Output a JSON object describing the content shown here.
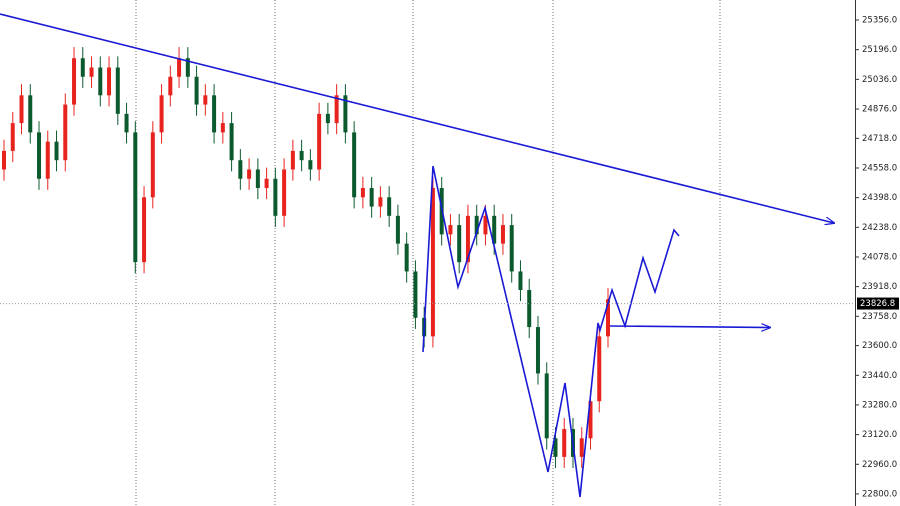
{
  "chart_data": {
    "type": "candlestick",
    "up_color": "#e8231e",
    "down_color": "#0b5a2e",
    "open": [
      24550,
      24650,
      24800,
      24950,
      24750,
      24500,
      24700,
      24600,
      24900,
      25150,
      25050,
      25100,
      24950,
      25100,
      24850,
      24750,
      24050,
      24400,
      24750,
      24950,
      25050,
      25150,
      25050,
      24900,
      24950,
      24750,
      24800,
      24600,
      24500,
      24550,
      24450,
      24500,
      24300,
      24550,
      24650,
      24600,
      24550,
      24850,
      24800,
      24950,
      24750,
      24400,
      24450,
      24350,
      24400,
      24300,
      24150,
      24000,
      23750,
      23650,
      24450,
      24200,
      24250,
      24050,
      24300,
      24200,
      24300,
      24150,
      24250,
      24000,
      23900,
      23700,
      23450,
      23100,
      23000,
      23150,
      23000,
      23100,
      23300,
      23650
    ],
    "high": [
      24710,
      24860,
      25010,
      25010,
      24810,
      24760,
      24760,
      24960,
      25210,
      25210,
      25160,
      25160,
      25160,
      25160,
      24910,
      24810,
      24460,
      24810,
      25010,
      25110,
      25210,
      25210,
      25110,
      25010,
      25010,
      24860,
      24860,
      24660,
      24610,
      24610,
      24560,
      24560,
      24610,
      24710,
      24710,
      24660,
      24910,
      24910,
      25010,
      25010,
      24810,
      24510,
      24510,
      24460,
      24460,
      24360,
      24210,
      24060,
      23810,
      24510,
      24510,
      24310,
      24310,
      24360,
      24360,
      24360,
      24360,
      24310,
      24310,
      24060,
      23960,
      23760,
      23510,
      23160,
      23210,
      23210,
      23160,
      23360,
      23710,
      23910
    ],
    "low": [
      24490,
      24590,
      24740,
      24690,
      24440,
      24440,
      24540,
      24540,
      24840,
      24990,
      24990,
      24890,
      24890,
      24790,
      24690,
      23990,
      23990,
      24340,
      24690,
      24890,
      24990,
      24990,
      24840,
      24840,
      24690,
      24690,
      24540,
      24440,
      24440,
      24390,
      24390,
      24240,
      24240,
      24490,
      24540,
      24490,
      24490,
      24740,
      24740,
      24690,
      24340,
      24340,
      24290,
      24290,
      24240,
      24090,
      23940,
      23690,
      23590,
      23590,
      24140,
      24140,
      23990,
      23990,
      24140,
      24140,
      24090,
      24090,
      23940,
      23840,
      23640,
      23390,
      23040,
      22940,
      22940,
      22940,
      22940,
      23040,
      23240,
      23590
    ],
    "close": [
      24650,
      24800,
      24950,
      24750,
      24500,
      24700,
      24600,
      24900,
      25150,
      25050,
      25100,
      24950,
      25100,
      24850,
      24750,
      24050,
      24400,
      24750,
      24950,
      25050,
      25150,
      25050,
      24900,
      24950,
      24750,
      24800,
      24600,
      24500,
      24550,
      24450,
      24500,
      24300,
      24550,
      24650,
      24600,
      24550,
      24850,
      24800,
      24950,
      24750,
      24400,
      24450,
      24350,
      24400,
      24300,
      24150,
      24000,
      23750,
      23650,
      24450,
      24200,
      24250,
      24050,
      24300,
      24200,
      24300,
      24150,
      24250,
      24000,
      23900,
      23700,
      23450,
      23100,
      23000,
      23150,
      23000,
      23100,
      23300,
      23650,
      23850
    ],
    "last_price": 23826.8,
    "ylim": [
      22735,
      25464
    ],
    "yticks": [
      {
        "value": 25356,
        "label": "25356.0"
      },
      {
        "value": 25196,
        "label": "25196.0"
      },
      {
        "value": 25036,
        "label": "25036.0"
      },
      {
        "value": 24876,
        "label": "24876.0"
      },
      {
        "value": 24718,
        "label": "24718.0"
      },
      {
        "value": 24558,
        "label": "24558.0"
      },
      {
        "value": 24398,
        "label": "24398.0"
      },
      {
        "value": 24238,
        "label": "24238.0"
      },
      {
        "value": 24078,
        "label": "24078.0"
      },
      {
        "value": 23918,
        "label": "23918.0"
      },
      {
        "value": 23758,
        "label": "23758.0"
      },
      {
        "value": 23600,
        "label": "23600.0"
      },
      {
        "value": 23440,
        "label": "23440.0"
      },
      {
        "value": 23280,
        "label": "23280.0"
      },
      {
        "value": 23120,
        "label": "23120.0"
      },
      {
        "value": 22960,
        "label": "22960.0"
      },
      {
        "value": 22800,
        "label": "22800.0"
      }
    ]
  }
}
